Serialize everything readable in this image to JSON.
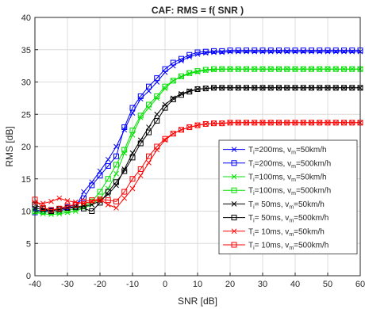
{
  "chart_data": {
    "type": "line",
    "title": "CAF: RMS = f( SNR )",
    "xlabel": "SNR [dB]",
    "ylabel": "RMS [dB]",
    "xlim": [
      -40,
      60
    ],
    "ylim": [
      0,
      40
    ],
    "xticks": [
      -40,
      -30,
      -20,
      -10,
      0,
      10,
      20,
      30,
      40,
      50,
      60
    ],
    "yticks": [
      0,
      5,
      10,
      15,
      20,
      25,
      30,
      35,
      40
    ],
    "grid": true,
    "legend_position": "bottom-right",
    "x": [
      -40,
      -37.5,
      -35,
      -32.5,
      -30,
      -27.5,
      -25,
      -22.5,
      -20,
      -17.5,
      -15,
      -12.5,
      -10,
      -7.5,
      -5,
      -2.5,
      0,
      2.5,
      5,
      7.5,
      10,
      12.5,
      15,
      17.5,
      20,
      22.5,
      25,
      27.5,
      30,
      32.5,
      35,
      37.5,
      40,
      42.5,
      45,
      47.5,
      50,
      52.5,
      55,
      57.5,
      60
    ],
    "series": [
      {
        "name": "T_i=200ms, v_m=50km/h",
        "label_main": "T",
        "label_sub1": "i",
        "label_mid": "=200ms, v",
        "label_sub2": "m",
        "label_end": "=50km/h",
        "color": "#0000ff",
        "marker": "x",
        "values": [
          10.2,
          10.0,
          9.8,
          10.0,
          10.4,
          10.6,
          13.0,
          14.5,
          16.2,
          18.0,
          20.0,
          22.6,
          25.2,
          27.4,
          28.6,
          30.0,
          31.5,
          32.5,
          33.3,
          33.9,
          34.3,
          34.5,
          34.6,
          34.6,
          34.7,
          34.7,
          34.7,
          34.7,
          34.7,
          34.7,
          34.7,
          34.7,
          34.7,
          34.7,
          34.7,
          34.7,
          34.7,
          34.7,
          34.7,
          34.7,
          34.7
        ]
      },
      {
        "name": "T_i=200ms, v_m=500km/h",
        "label_main": "T",
        "label_sub1": "i",
        "label_mid": "=200ms, v",
        "label_sub2": "m",
        "label_end": "=500km/h",
        "color": "#0000ff",
        "marker": "square",
        "values": [
          9.8,
          10.0,
          10.1,
          10.3,
          10.6,
          11.0,
          12.0,
          14.0,
          15.5,
          17.0,
          18.5,
          23.0,
          26.0,
          27.8,
          29.3,
          30.6,
          32.0,
          33.0,
          33.6,
          34.2,
          34.6,
          34.7,
          34.8,
          34.8,
          34.9,
          34.9,
          34.9,
          34.9,
          34.9,
          34.9,
          34.9,
          34.9,
          34.9,
          34.9,
          34.9,
          34.9,
          34.9,
          34.9,
          34.9,
          34.9,
          34.9
        ]
      },
      {
        "name": "T_i=100ms, v_m=50km/h",
        "label_main": "T",
        "label_sub1": "i",
        "label_mid": "=100ms, v",
        "label_sub2": "m",
        "label_end": "=50km/h",
        "color": "#00e000",
        "marker": "x",
        "values": [
          9.8,
          9.6,
          9.5,
          9.6,
          9.8,
          10.0,
          10.5,
          11.0,
          12.0,
          13.5,
          15.8,
          19.0,
          21.8,
          24.5,
          26.0,
          27.5,
          29.0,
          30.2,
          30.8,
          31.3,
          31.6,
          31.8,
          31.9,
          32.0,
          32.0,
          32.0,
          32.0,
          32.0,
          32.0,
          32.0,
          32.0,
          32.0,
          32.0,
          32.0,
          32.0,
          32.0,
          32.0,
          32.0,
          32.0,
          32.0,
          32.0
        ]
      },
      {
        "name": "T_i=100ms, v_m=500km/h",
        "label_main": "T",
        "label_sub1": "i",
        "label_mid": "=100ms, v",
        "label_sub2": "m",
        "label_end": "=500km/h",
        "color": "#00e000",
        "marker": "square",
        "values": [
          10.0,
          9.9,
          9.8,
          9.9,
          10.1,
          10.4,
          10.8,
          11.5,
          13.0,
          15.0,
          17.2,
          19.5,
          22.5,
          24.8,
          26.5,
          27.8,
          29.3,
          30.2,
          30.9,
          31.4,
          31.7,
          31.9,
          32.0,
          32.0,
          32.0,
          32.0,
          32.0,
          32.0,
          32.0,
          32.0,
          32.0,
          32.0,
          32.0,
          32.0,
          32.0,
          32.0,
          32.0,
          32.0,
          32.0,
          32.0,
          32.0
        ]
      },
      {
        "name": "T_i= 50ms, v_m=50km/h",
        "label_main": "T",
        "label_sub1": "i",
        "label_mid": "= 50ms, v",
        "label_sub2": "m",
        "label_end": "=50km/h",
        "color": "#000000",
        "marker": "x",
        "values": [
          10.5,
          10.2,
          10.1,
          10.3,
          10.5,
          10.7,
          10.8,
          11.0,
          11.6,
          12.6,
          14.0,
          16.5,
          19.0,
          21.0,
          23.0,
          25.0,
          26.5,
          27.5,
          28.2,
          28.6,
          28.9,
          29.0,
          29.1,
          29.1,
          29.1,
          29.1,
          29.1,
          29.1,
          29.1,
          29.1,
          29.1,
          29.1,
          29.1,
          29.1,
          29.1,
          29.1,
          29.1,
          29.1,
          29.1,
          29.1,
          29.1
        ]
      },
      {
        "name": "T_i= 50ms, v_m=500km/h",
        "label_main": "T",
        "label_sub1": "i",
        "label_mid": "= 50ms, v",
        "label_sub2": "m",
        "label_end": "=500km/h",
        "color": "#000000",
        "marker": "square",
        "values": [
          11.0,
          10.4,
          10.0,
          10.3,
          10.5,
          10.6,
          10.4,
          10.0,
          11.3,
          13.0,
          14.5,
          16.2,
          18.3,
          20.5,
          22.2,
          24.0,
          26.0,
          27.3,
          28.0,
          28.5,
          28.9,
          29.0,
          29.1,
          29.1,
          29.1,
          29.1,
          29.1,
          29.1,
          29.1,
          29.1,
          29.1,
          29.1,
          29.1,
          29.1,
          29.1,
          29.1,
          29.1,
          29.1,
          29.1,
          29.1,
          29.1
        ]
      },
      {
        "name": "T_i= 10ms, v_m=50km/h",
        "label_main": "T",
        "label_sub1": "i",
        "label_mid": "= 10ms, v",
        "label_sub2": "m",
        "label_end": "=50km/h",
        "color": "#ff0000",
        "marker": "x",
        "values": [
          11.3,
          11.2,
          11.5,
          12.0,
          11.6,
          11.4,
          11.2,
          11.5,
          11.8,
          11.0,
          10.5,
          12.0,
          13.5,
          15.5,
          17.5,
          19.5,
          21.0,
          22.0,
          22.6,
          23.0,
          23.3,
          23.5,
          23.6,
          23.6,
          23.7,
          23.7,
          23.7,
          23.7,
          23.7,
          23.7,
          23.7,
          23.7,
          23.7,
          23.7,
          23.7,
          23.7,
          23.7,
          23.7,
          23.7,
          23.7,
          23.7
        ]
      },
      {
        "name": "T_i= 10ms, v_m=500km/h",
        "label_main": "T",
        "label_sub1": "i",
        "label_mid": "= 10ms, v",
        "label_sub2": "m",
        "label_end": "=500km/h",
        "color": "#ff0000",
        "marker": "square",
        "values": [
          11.8,
          10.5,
          10.2,
          10.4,
          10.8,
          11.0,
          11.5,
          11.7,
          11.8,
          11.7,
          11.5,
          13.0,
          15.0,
          16.5,
          18.5,
          20.0,
          21.2,
          22.0,
          22.6,
          23.0,
          23.3,
          23.5,
          23.6,
          23.6,
          23.7,
          23.7,
          23.7,
          23.7,
          23.7,
          23.7,
          23.7,
          23.7,
          23.7,
          23.7,
          23.7,
          23.7,
          23.7,
          23.7,
          23.7,
          23.7,
          23.7
        ]
      }
    ]
  }
}
